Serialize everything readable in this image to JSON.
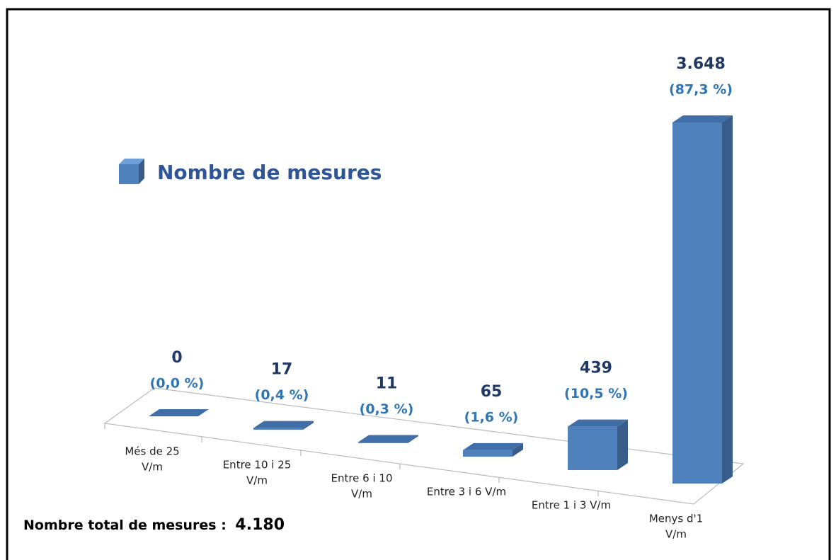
{
  "chart_data": {
    "type": "bar3d",
    "categories": [
      [
        "Més de 25",
        "V/m"
      ],
      [
        "Entre 10 i 25",
        "V/m"
      ],
      [
        "Entre 6 i 10",
        "V/m"
      ],
      [
        "Entre 3 i 6 V/m"
      ],
      [
        "Entre 1 i 3 V/m"
      ],
      [
        "Menys d'1",
        "V/m"
      ]
    ],
    "series": [
      {
        "name": "Nombre de mesures",
        "color": "#4f81bd",
        "values": [
          0,
          17,
          11,
          65,
          439,
          3648
        ],
        "value_labels": [
          "0",
          "17",
          "11",
          "65",
          "439",
          "3.648"
        ],
        "percent_labels": [
          "(0,0 %)",
          "(0,4 %)",
          "(0,3 %)",
          "(1,6 %)",
          "(10,5 %)",
          "(87,3 %)"
        ]
      }
    ],
    "annotation": {
      "text": "Nombre total de mesures :",
      "value": 4180,
      "label": "4.180"
    }
  }
}
